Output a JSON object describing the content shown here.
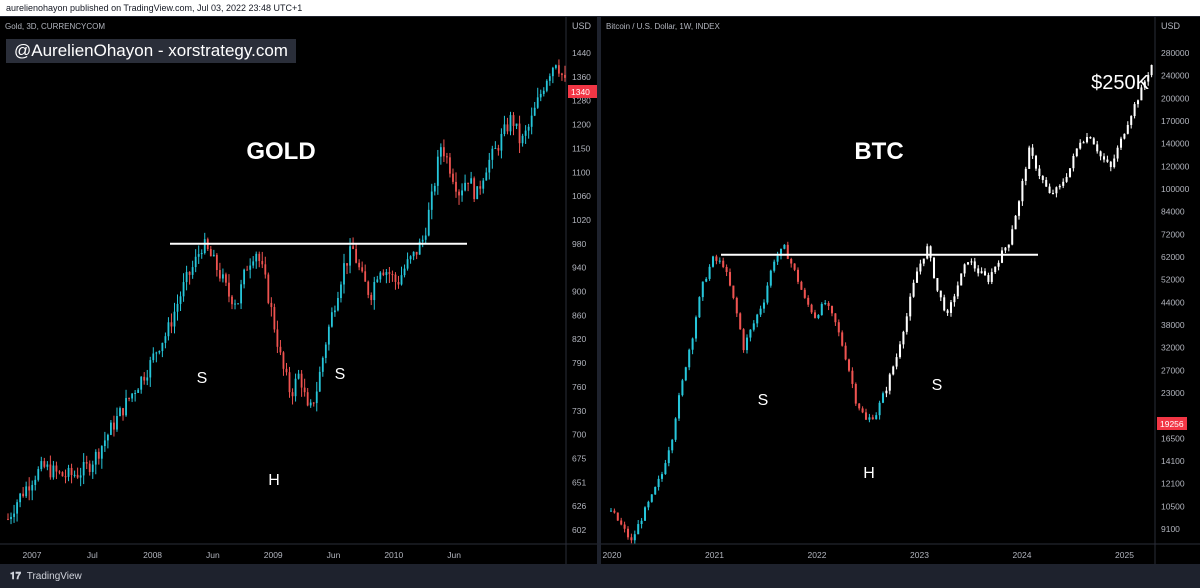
{
  "header": {
    "text": "aurelienohayon published on TradingView.com, Jul 03, 2022 23:48 UTC+1"
  },
  "footer": {
    "brand": "TradingView",
    "logo_icon": "tradingview-logo-icon"
  },
  "colors": {
    "up": "#26c6da",
    "down": "#ef5350",
    "btc_white": "#ffffff",
    "axis_text": "#b2b5be",
    "price_tag": "#f23645"
  },
  "chart_data": [
    {
      "type": "candlestick",
      "symbol": "Gold, 3D, CURRENCYCOM",
      "watermark": "@AurelienOhayon - xorstrategy.com",
      "title": "GOLD",
      "axis_unit": "USD",
      "y_ticks": [
        "1440",
        "1360",
        "1280",
        "1200",
        "1150",
        "1100",
        "1060",
        "1020",
        "980",
        "940",
        "900",
        "860",
        "820",
        "790",
        "760",
        "730",
        "700",
        "675",
        "651",
        "626",
        "602"
      ],
      "x_ticks": [
        "2007",
        "Jul",
        "2008",
        "Jun",
        "2009",
        "Jun",
        "2010",
        "Jun"
      ],
      "last_price": "1340",
      "annotations": [
        {
          "label": "S",
          "role": "left-shoulder"
        },
        {
          "label": "H",
          "role": "head"
        },
        {
          "label": "S",
          "role": "right-shoulder"
        }
      ],
      "neckline": {
        "price": 1000
      },
      "path_prices": [
        605,
        625,
        640,
        655,
        665,
        660,
        655,
        655,
        658,
        665,
        680,
        700,
        720,
        740,
        760,
        780,
        800,
        830,
        850,
        890,
        930,
        960,
        1000,
        975,
        945,
        910,
        900,
        960,
        990,
        940,
        870,
        800,
        760,
        790,
        730,
        770,
        840,
        900,
        960,
        990,
        940,
        910,
        960,
        950,
        930,
        960,
        980,
        1010,
        1090,
        1200,
        1150,
        1100,
        1130,
        1090,
        1150,
        1180,
        1220,
        1260,
        1200,
        1240,
        1300,
        1360,
        1400,
        1340
      ]
    },
    {
      "type": "candlestick",
      "symbol": "Bitcoin / U.S. Dollar, 1W, INDEX",
      "title": "BTC",
      "target_label": "$250K",
      "axis_unit": "USD",
      "y_ticks": [
        "280000",
        "240000",
        "200000",
        "170000",
        "140000",
        "120000",
        "100000",
        "84000",
        "72000",
        "62000",
        "52000",
        "44000",
        "38000",
        "32000",
        "27000",
        "23000",
        "19256",
        "16500",
        "14100",
        "12100",
        "10500",
        "9100"
      ],
      "x_ticks": [
        "2020",
        "2021",
        "2022",
        "2023",
        "2024",
        "2025"
      ],
      "last_price": "19256",
      "annotations": [
        {
          "label": "S",
          "role": "left-shoulder"
        },
        {
          "label": "H",
          "role": "head"
        },
        {
          "label": "S",
          "role": "right-shoulder"
        }
      ],
      "neckline": {
        "price": 62000
      },
      "path_prices": [
        10000,
        9000,
        8000,
        9500,
        11000,
        13000,
        17000,
        25000,
        35000,
        50000,
        60000,
        58000,
        45000,
        32000,
        38000,
        45000,
        60000,
        65000,
        55000,
        45000,
        40000,
        44000,
        38000,
        30000,
        22000,
        19000,
        20000,
        24000,
        30000,
        40000,
        55000,
        65000,
        48000,
        40000,
        50000,
        60000,
        55000,
        52000,
        60000,
        68000,
        90000,
        130000,
        110000,
        95000,
        100000,
        115000,
        140000,
        145000,
        125000,
        115000,
        140000,
        170000,
        200000,
        240000
      ]
    }
  ]
}
